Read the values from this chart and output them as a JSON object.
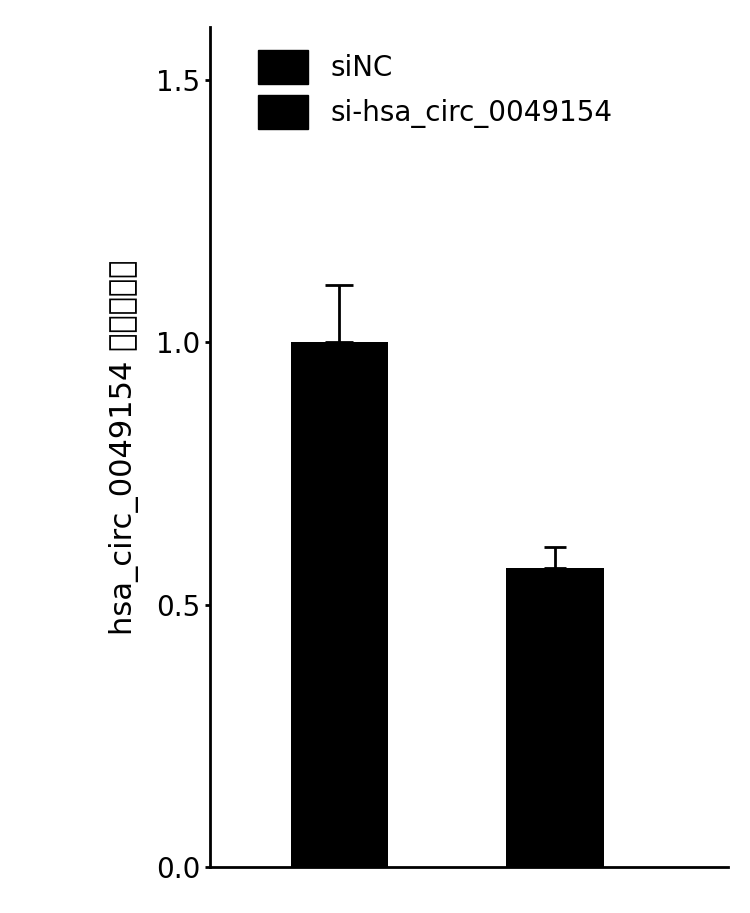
{
  "categories": [
    "siNC",
    "si-hsa_circ_0049154"
  ],
  "values": [
    1.0,
    0.57
  ],
  "errors": [
    0.11,
    0.04
  ],
  "bar_color": "#000000",
  "bar_width": 0.45,
  "ylim": [
    0,
    1.6
  ],
  "yticks": [
    0.0,
    0.5,
    1.0,
    1.5
  ],
  "ylabel_latin": "hsa_circ_0049154 ",
  "ylabel_chinese": "相对表达量",
  "legend_labels": [
    "siNC",
    "si-hsa_circ_0049154"
  ],
  "background_color": "#ffffff",
  "bar_positions": [
    1,
    2
  ],
  "xlim": [
    0.4,
    2.8
  ],
  "tick_fontsize": 20,
  "ylabel_fontsize": 22,
  "legend_fontsize": 20
}
